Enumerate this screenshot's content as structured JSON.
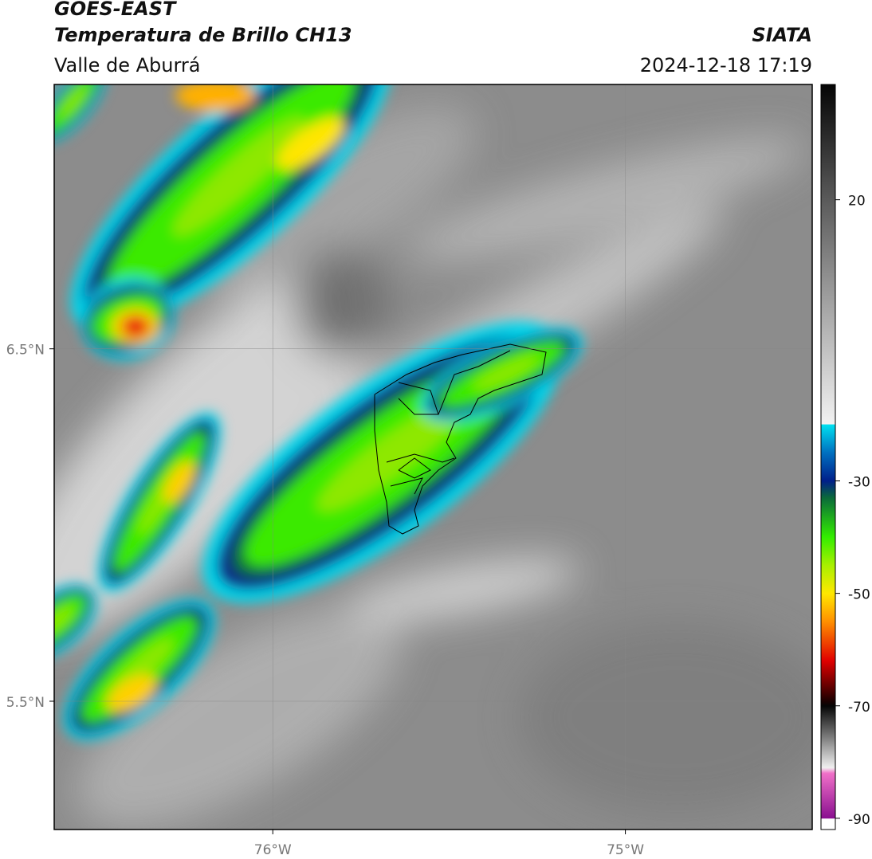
{
  "header": {
    "satellite": "GOES-EAST",
    "title": "Temperatura de Brillo CH13",
    "subtitle": "Valle de Aburrá",
    "agency": "SIATA",
    "datetime": "2024-12-18 17:19"
  },
  "map": {
    "latlim": [
      5.136,
      7.25
    ],
    "lonlim": [
      -76.62,
      -74.47
    ],
    "lat_ticks": [
      {
        "value": 6.5,
        "label": "6.5°N"
      },
      {
        "value": 5.5,
        "label": "5.5°N"
      }
    ],
    "lon_ticks": [
      {
        "value": -76,
        "label": "76°W"
      },
      {
        "value": -75,
        "label": "75°W"
      }
    ],
    "grid": true
  },
  "colorbar": {
    "lim": [
      -92,
      40.5
    ],
    "ticks": [
      20,
      -30,
      -50,
      -70,
      -90
    ],
    "colors": [
      [
        40.5,
        "#050505"
      ],
      [
        20,
        "#5a5a5a"
      ],
      [
        0,
        "#a8a8a8"
      ],
      [
        -19.9,
        "#f2f2f2"
      ],
      [
        -20,
        "#00e0f0"
      ],
      [
        -25,
        "#0070c0"
      ],
      [
        -30,
        "#001f8a"
      ],
      [
        -33,
        "#0a6a3a"
      ],
      [
        -40,
        "#33ee00"
      ],
      [
        -45,
        "#a8f000"
      ],
      [
        -50,
        "#ffe800"
      ],
      [
        -55,
        "#ff9000"
      ],
      [
        -62,
        "#e00000"
      ],
      [
        -69,
        "#200000"
      ],
      [
        -70,
        "#050505"
      ],
      [
        -78,
        "#b0b0b0"
      ],
      [
        -81,
        "#f0f0f0"
      ],
      [
        -82,
        "#f070c8"
      ],
      [
        -90,
        "#8a1090"
      ],
      [
        -90.1,
        "#ffffff"
      ],
      [
        -92,
        "#ffffff"
      ]
    ]
  }
}
